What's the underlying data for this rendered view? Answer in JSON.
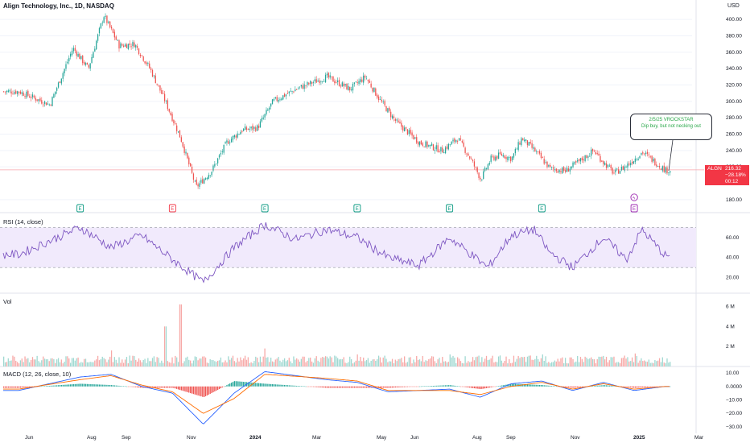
{
  "header": {
    "title": "Align Technology, Inc., 1D, NASDAQ",
    "currency": "USD"
  },
  "price_tag": {
    "symbol": "ALGN",
    "price": "216.32",
    "change": "−28.18%",
    "countdown": "00:12"
  },
  "annotation": {
    "line1": "2/5/25 VROCKSTAR",
    "line2": "Dip buy, but not necking out"
  },
  "panes": {
    "rsi_label": "RSI (14, close)",
    "vol_label": "Vol",
    "macd_label": "MACD (12, 26, close, 10)"
  },
  "colors": {
    "up": "#26a69a",
    "down": "#ef5350",
    "rsi_line": "#7e57c2",
    "rsi_band": "#f1eafc",
    "macd_line": "#2962ff",
    "signal_line": "#ff6d00",
    "earnings": "#089981"
  },
  "chart_data": [
    {
      "type": "candlestick",
      "title": "Align Technology, Inc., 1D, NASDAQ",
      "x_ticks": [
        "Jun",
        "Aug",
        "Sep",
        "Nov",
        "2024",
        "Mar",
        "May",
        "Jun",
        "Aug",
        "Sep",
        "Nov",
        "2025",
        "Mar"
      ],
      "y_ticks": [
        "400.00",
        "380.00",
        "360.00",
        "340.00",
        "320.00",
        "300.00",
        "280.00",
        "260.00",
        "240.00",
        "220.00",
        "180.00"
      ],
      "ylim": [
        170,
        410
      ],
      "last_price": 216.32,
      "anchors": [
        {
          "x": "May 2023",
          "close": 312
        },
        {
          "x": "Jun 2023",
          "close": 296
        },
        {
          "x": "Jul 2023",
          "close": 365
        },
        {
          "x": "Jul 2023",
          "close": 340
        },
        {
          "x": "Aug 2023",
          "close": 405
        },
        {
          "x": "Aug 2023",
          "close": 368
        },
        {
          "x": "Sep 2023",
          "close": 370
        },
        {
          "x": "Sep 2023",
          "close": 340
        },
        {
          "x": "Oct 2023",
          "close": 300
        },
        {
          "x": "Oct 2023",
          "close": 255
        },
        {
          "x": "Nov 2023",
          "close": 195
        },
        {
          "x": "Nov 2023",
          "close": 215
        },
        {
          "x": "Dec 2023",
          "close": 250
        },
        {
          "x": "Dec 2023",
          "close": 265
        },
        {
          "x": "Jan 2024",
          "close": 268
        },
        {
          "x": "Jan 2024",
          "close": 300
        },
        {
          "x": "Feb 2024",
          "close": 315
        },
        {
          "x": "Mar 2024",
          "close": 330
        },
        {
          "x": "Apr 2024",
          "close": 315
        },
        {
          "x": "Apr 2024",
          "close": 330
        },
        {
          "x": "May 2024",
          "close": 300
        },
        {
          "x": "May 2024",
          "close": 275
        },
        {
          "x": "Jun 2024",
          "close": 250
        },
        {
          "x": "Jul 2024",
          "close": 240
        },
        {
          "x": "Jul 2024",
          "close": 255
        },
        {
          "x": "Aug 2024",
          "close": 230
        },
        {
          "x": "Aug 2024",
          "close": 205
        },
        {
          "x": "Aug 2024",
          "close": 230
        },
        {
          "x": "Sep 2024",
          "close": 235
        },
        {
          "x": "Sep 2024",
          "close": 230
        },
        {
          "x": "Sep 2024",
          "close": 255
        },
        {
          "x": "Oct 2024",
          "close": 240
        },
        {
          "x": "Oct 2024",
          "close": 218
        },
        {
          "x": "Nov 2024",
          "close": 215
        },
        {
          "x": "Nov 2024",
          "close": 228
        },
        {
          "x": "Dec 2024",
          "close": 240
        },
        {
          "x": "Dec 2024",
          "close": 225
        },
        {
          "x": "Dec 2024",
          "close": 212
        },
        {
          "x": "Jan 2025",
          "close": 222
        },
        {
          "x": "Jan 2025",
          "close": 238
        },
        {
          "x": "Feb 2025",
          "close": 216
        }
      ],
      "earnings_markers": [
        {
          "x": "Jul 2023",
          "label": "E",
          "color": "green"
        },
        {
          "x": "Oct 2023",
          "label": "E",
          "color": "red"
        },
        {
          "x": "Jan 2024",
          "label": "E",
          "color": "green"
        },
        {
          "x": "Apr 2024",
          "label": "E",
          "color": "green"
        },
        {
          "x": "Jul 2024",
          "label": "E",
          "color": "green"
        },
        {
          "x": "Oct 2024",
          "label": "E",
          "color": "green"
        },
        {
          "x": "Jan 2025",
          "label": "E",
          "color": "purple"
        }
      ]
    },
    {
      "type": "line",
      "name": "RSI (14, close)",
      "y_ticks": [
        "60.00",
        "40.00",
        "20.00"
      ],
      "ylim": [
        10,
        80
      ],
      "bands": [
        30,
        70
      ],
      "anchors": [
        {
          "x": "May 2023",
          "value": 43
        },
        {
          "x": "Jul 2023",
          "value": 70
        },
        {
          "x": "Aug 2023",
          "value": 50
        },
        {
          "x": "Sep 2023",
          "value": 62
        },
        {
          "x": "Oct 2023",
          "value": 38
        },
        {
          "x": "Nov 2023",
          "value": 15
        },
        {
          "x": "Dec 2023",
          "value": 50
        },
        {
          "x": "Jan 2024",
          "value": 73
        },
        {
          "x": "Feb 2024",
          "value": 58
        },
        {
          "x": "Mar 2024",
          "value": 68
        },
        {
          "x": "Apr 2024",
          "value": 60
        },
        {
          "x": "May 2024",
          "value": 40
        },
        {
          "x": "Jun 2024",
          "value": 32
        },
        {
          "x": "Jul 2024",
          "value": 60
        },
        {
          "x": "Aug 2024",
          "value": 42
        },
        {
          "x": "Aug 2024",
          "value": 30
        },
        {
          "x": "Sep 2024",
          "value": 62
        },
        {
          "x": "Oct 2024",
          "value": 68
        },
        {
          "x": "Oct 2024",
          "value": 45
        },
        {
          "x": "Nov 2024",
          "value": 30
        },
        {
          "x": "Dec 2024",
          "value": 60
        },
        {
          "x": "Jan 2025",
          "value": 38
        },
        {
          "x": "Jan 2025",
          "value": 68
        },
        {
          "x": "Feb 2025",
          "value": 42
        }
      ]
    },
    {
      "type": "bar",
      "name": "Vol",
      "y_ticks": [
        "6 M",
        "4 M",
        "2 M"
      ],
      "ylim": [
        0,
        7000000
      ],
      "spikes": [
        {
          "x": "Aug 2023",
          "value": 1600000
        },
        {
          "x": "Oct 2023",
          "value": 4000000
        },
        {
          "x": "Oct 2023",
          "value": 6200000
        },
        {
          "x": "Jan 2024",
          "value": 1800000
        },
        {
          "x": "Apr 2024",
          "value": 1200000
        },
        {
          "x": "Jul 2024",
          "value": 1200000
        },
        {
          "x": "Oct 2024",
          "value": 1200000
        },
        {
          "x": "Jan 2025",
          "value": 1300000
        }
      ],
      "typical_range": [
        300000,
        1100000
      ]
    },
    {
      "type": "line",
      "name": "MACD (12, 26, close, 10)",
      "y_ticks": [
        "10.00",
        "0.0000",
        "−10.00",
        "−20.00",
        "−30.00"
      ],
      "ylim": [
        -33,
        13
      ],
      "series": [
        {
          "name": "MACD",
          "anchors": [
            {
              "x": "May 2023",
              "value": -3
            },
            {
              "x": "Jul 2023",
              "value": 7
            },
            {
              "x": "Aug 2023",
              "value": 9
            },
            {
              "x": "Sep 2023",
              "value": 0
            },
            {
              "x": "Oct 2023",
              "value": -5
            },
            {
              "x": "Nov 2023",
              "value": -28
            },
            {
              "x": "Dec 2023",
              "value": -5
            },
            {
              "x": "Jan 2024",
              "value": 11
            },
            {
              "x": "Mar 2024",
              "value": 5
            },
            {
              "x": "Apr 2024",
              "value": 3
            },
            {
              "x": "May 2024",
              "value": -4
            },
            {
              "x": "Jul 2024",
              "value": -2
            },
            {
              "x": "Aug 2024",
              "value": -8
            },
            {
              "x": "Sep 2024",
              "value": 2
            },
            {
              "x": "Oct 2024",
              "value": 4
            },
            {
              "x": "Nov 2024",
              "value": -3
            },
            {
              "x": "Dec 2024",
              "value": 3
            },
            {
              "x": "Jan 2025",
              "value": -3
            },
            {
              "x": "Feb 2025",
              "value": 0
            }
          ]
        },
        {
          "name": "Signal",
          "anchors": [
            {
              "x": "May 2023",
              "value": -2
            },
            {
              "x": "Jul 2023",
              "value": 5
            },
            {
              "x": "Aug 2023",
              "value": 8
            },
            {
              "x": "Sep 2023",
              "value": 1
            },
            {
              "x": "Oct 2023",
              "value": -4
            },
            {
              "x": "Nov 2023",
              "value": -20
            },
            {
              "x": "Dec 2023",
              "value": -9
            },
            {
              "x": "Jan 2024",
              "value": 9
            },
            {
              "x": "Mar 2024",
              "value": 6
            },
            {
              "x": "Apr 2024",
              "value": 4
            },
            {
              "x": "May 2024",
              "value": -3
            },
            {
              "x": "Jul 2024",
              "value": -3
            },
            {
              "x": "Aug 2024",
              "value": -6
            },
            {
              "x": "Sep 2024",
              "value": 0
            },
            {
              "x": "Oct 2024",
              "value": 3
            },
            {
              "x": "Nov 2024",
              "value": -2
            },
            {
              "x": "Dec 2024",
              "value": 2
            },
            {
              "x": "Jan 2025",
              "value": -2
            },
            {
              "x": "Feb 2025",
              "value": 0
            }
          ]
        }
      ]
    }
  ]
}
